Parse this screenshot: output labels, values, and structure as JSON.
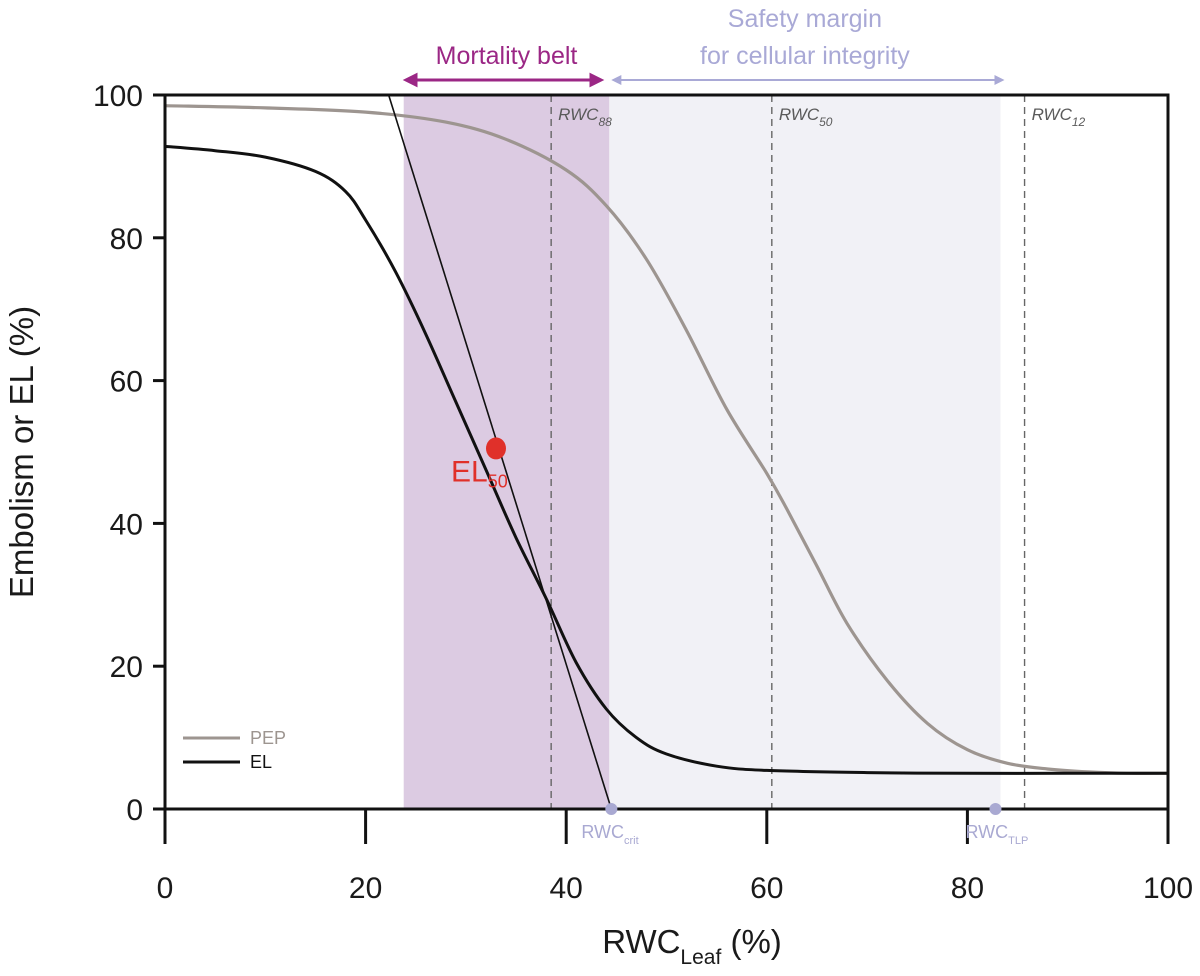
{
  "colors": {
    "mortality": "#9b2785",
    "mortality_fill": "#dccbe2",
    "safety": "#a9a9d6",
    "safety_fill": "#f1f1f6",
    "pep": "#9d9590",
    "el": "#111111",
    "el50": "#e0302a",
    "marker": "#a9a9d2"
  },
  "chart_data": {
    "type": "line",
    "xlabel": "RWC",
    "xlabel_sub": "Leaf",
    "xlabel_unit": " (%)",
    "ylabel": "Embolism or EL (%)",
    "xlim": [
      0,
      100
    ],
    "ylim": [
      0,
      100
    ],
    "x_ticks": [
      "0",
      "20",
      "40",
      "60",
      "80",
      "100"
    ],
    "y_ticks": [
      "0",
      "20",
      "40",
      "60",
      "80",
      "100"
    ],
    "grid": false,
    "legend_position": "bottom-left",
    "series": [
      {
        "name": "PEP",
        "color": "#9d9590",
        "x": [
          0,
          10,
          20,
          28,
          34,
          40,
          44,
          48,
          52,
          56,
          60,
          62,
          65,
          68,
          72,
          76,
          80,
          84,
          88,
          92,
          96,
          100
        ],
        "y": [
          98.5,
          98.2,
          97.6,
          96.2,
          93.8,
          89.5,
          84.5,
          77,
          67,
          56,
          47,
          42,
          34,
          26,
          18,
          12,
          8.3,
          6.4,
          5.6,
          5.2,
          5.0,
          5.0
        ]
      },
      {
        "name": "EL",
        "color": "#111111",
        "x": [
          0,
          5,
          10,
          15,
          18,
          20,
          23,
          26,
          29,
          32,
          35,
          38,
          41,
          44,
          47,
          50,
          55,
          60,
          70,
          80,
          90,
          100
        ],
        "y": [
          92.8,
          92.2,
          91.3,
          89.3,
          86.5,
          82.5,
          75.2,
          66.5,
          57,
          47.5,
          38,
          29.5,
          20.5,
          14,
          10,
          7.7,
          6.0,
          5.4,
          5.1,
          5.0,
          5.0,
          5.0
        ]
      }
    ],
    "tangent_line": {
      "x": [
        22.3,
        44.5
      ],
      "y": [
        100,
        0
      ]
    },
    "vertical_lines": [
      {
        "x": 38.5,
        "label": "RWC",
        "sub": "88"
      },
      {
        "x": 60.5,
        "label": "RWC",
        "sub": "50"
      },
      {
        "x": 85.7,
        "label": "RWC",
        "sub": "12"
      }
    ],
    "bands": [
      {
        "name": "mortality",
        "x0": 23.8,
        "x1": 44.3
      },
      {
        "name": "safety",
        "x0": 44.3,
        "x1": 83.3
      }
    ],
    "band_labels": {
      "mortality": "Mortality belt",
      "safety_line1": "Safety margin",
      "safety_line2": "for cellular integrity"
    },
    "el50_point": {
      "x": 33,
      "y": 50.5,
      "label": "EL",
      "sub": "50"
    },
    "markers": [
      {
        "x": 44.5,
        "y": 0,
        "label": "RWC",
        "sub": "crit"
      },
      {
        "x": 82.8,
        "y": 0,
        "label": "RWC",
        "sub": "TLP"
      }
    ],
    "legend": [
      {
        "label": "PEP",
        "color": "#9d9590"
      },
      {
        "label": "EL",
        "color": "#111111"
      }
    ]
  }
}
